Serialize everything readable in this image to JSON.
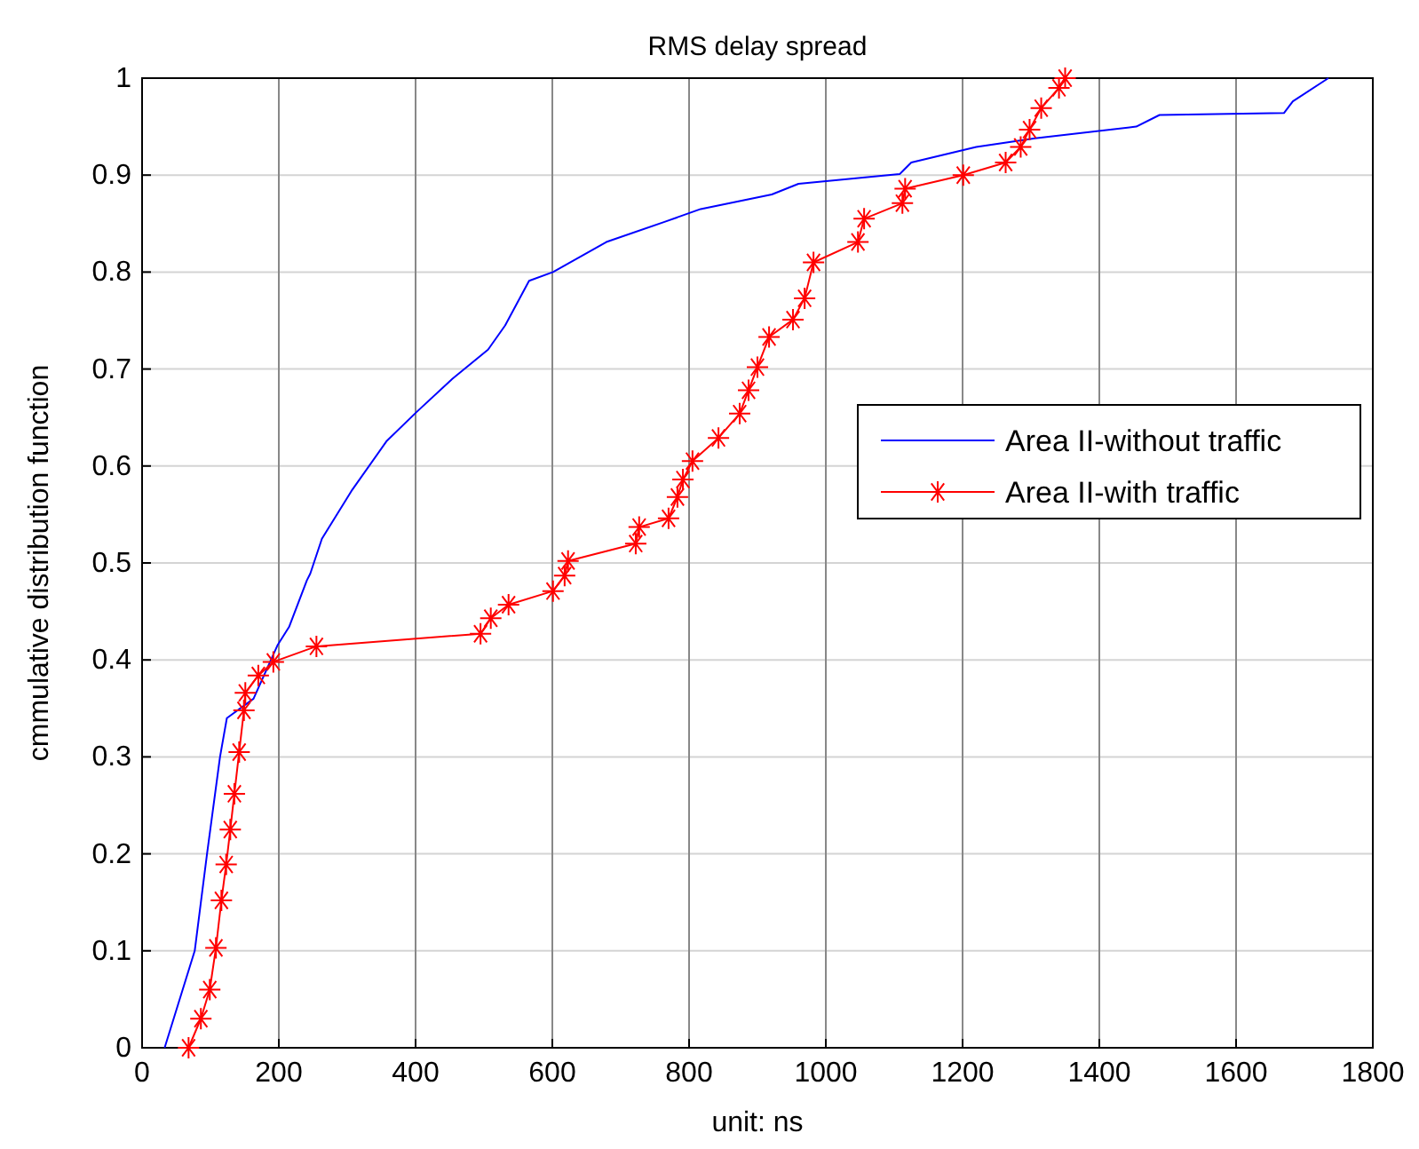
{
  "chart_data": {
    "type": "line",
    "title": "RMS delay spread",
    "xlabel": "unit: ns",
    "ylabel": "cmmulative distribution function",
    "xlim": [
      0,
      1800
    ],
    "xticks": [
      0,
      200,
      400,
      600,
      800,
      1000,
      1200,
      1400,
      1600,
      1800
    ],
    "ylim": [
      0,
      1
    ],
    "yticks": [
      0,
      0.1,
      0.2,
      0.3,
      0.4,
      0.5,
      0.6,
      0.7,
      0.8,
      0.9,
      1
    ],
    "grid": true,
    "legend": "right",
    "series": [
      {
        "name": "Area II-without traffic",
        "color": "#0000ff",
        "marker": "none",
        "x": [
          33,
          77,
          95,
          114,
          124,
          163,
          198,
          215,
          241,
          246,
          263,
          306,
          358,
          402,
          454,
          506,
          531,
          566,
          601,
          679,
          765,
          817,
          921,
          960,
          1108,
          1125,
          1220,
          1306,
          1454,
          1488,
          1670,
          1683,
          1735
        ],
        "values": [
          0,
          0.1,
          0.2,
          0.3,
          0.34,
          0.36,
          0.415,
          0.434,
          0.482,
          0.489,
          0.525,
          0.574,
          0.626,
          0.656,
          0.69,
          0.72,
          0.745,
          0.791,
          0.8,
          0.831,
          0.852,
          0.865,
          0.88,
          0.891,
          0.901,
          0.913,
          0.929,
          0.938,
          0.95,
          0.962,
          0.964,
          0.976,
          1
        ]
      },
      {
        "name": "Area II-with traffic",
        "color": "#ff0000",
        "marker": "cross",
        "x": [
          68,
          86,
          99,
          108,
          116,
          123,
          129,
          135,
          142,
          149,
          151,
          170,
          192,
          255,
          495,
          510,
          536,
          601,
          618,
          623,
          722,
          727,
          770,
          783,
          791,
          805,
          843,
          874,
          887,
          900,
          917,
          952,
          969,
          982,
          1047,
          1056,
          1112,
          1116,
          1201,
          1263,
          1285,
          1298,
          1315,
          1341,
          1350
        ],
        "values": [
          0,
          0.03,
          0.06,
          0.103,
          0.152,
          0.189,
          0.225,
          0.262,
          0.305,
          0.348,
          0.366,
          0.384,
          0.398,
          0.414,
          0.427,
          0.443,
          0.457,
          0.471,
          0.487,
          0.502,
          0.52,
          0.537,
          0.546,
          0.568,
          0.586,
          0.605,
          0.629,
          0.654,
          0.678,
          0.702,
          0.733,
          0.751,
          0.773,
          0.81,
          0.831,
          0.855,
          0.871,
          0.886,
          0.9,
          0.913,
          0.929,
          0.947,
          0.969,
          0.99,
          1
        ]
      }
    ]
  }
}
